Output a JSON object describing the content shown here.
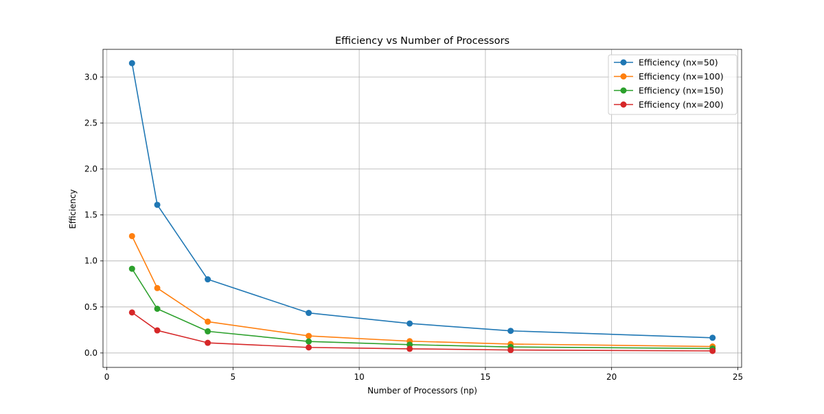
{
  "chart_data": {
    "type": "line",
    "title": "Efficiency vs Number of Processors",
    "xlabel": "Number of Processors (np)",
    "ylabel": "Efficiency",
    "xlim": [
      -0.15,
      25.15
    ],
    "ylim": [
      -0.157,
      3.3
    ],
    "xticks": [
      0,
      5,
      10,
      15,
      20,
      25
    ],
    "xtick_labels": [
      "0",
      "5",
      "10",
      "15",
      "20",
      "25"
    ],
    "yticks": [
      0.0,
      0.5,
      1.0,
      1.5,
      2.0,
      2.5,
      3.0
    ],
    "ytick_labels": [
      "0.0",
      "0.5",
      "1.0",
      "1.5",
      "2.0",
      "2.5",
      "3.0"
    ],
    "grid": true,
    "legend_position": "top-right",
    "x": [
      1,
      2,
      4,
      8,
      12,
      16,
      24
    ],
    "series": [
      {
        "name": "Efficiency (nx=50)",
        "color": "#1f77b4",
        "values": [
          3.15,
          1.61,
          0.8,
          0.435,
          0.32,
          0.24,
          0.165
        ]
      },
      {
        "name": "Efficiency (nx=100)",
        "color": "#ff7f0e",
        "values": [
          1.27,
          0.705,
          0.34,
          0.185,
          0.128,
          0.097,
          0.07
        ]
      },
      {
        "name": "Efficiency (nx=150)",
        "color": "#2ca02c",
        "values": [
          0.915,
          0.48,
          0.235,
          0.125,
          0.09,
          0.065,
          0.048
        ]
      },
      {
        "name": "Efficiency (nx=200)",
        "color": "#d62728",
        "values": [
          0.44,
          0.245,
          0.11,
          0.06,
          0.045,
          0.032,
          0.022
        ]
      }
    ]
  }
}
